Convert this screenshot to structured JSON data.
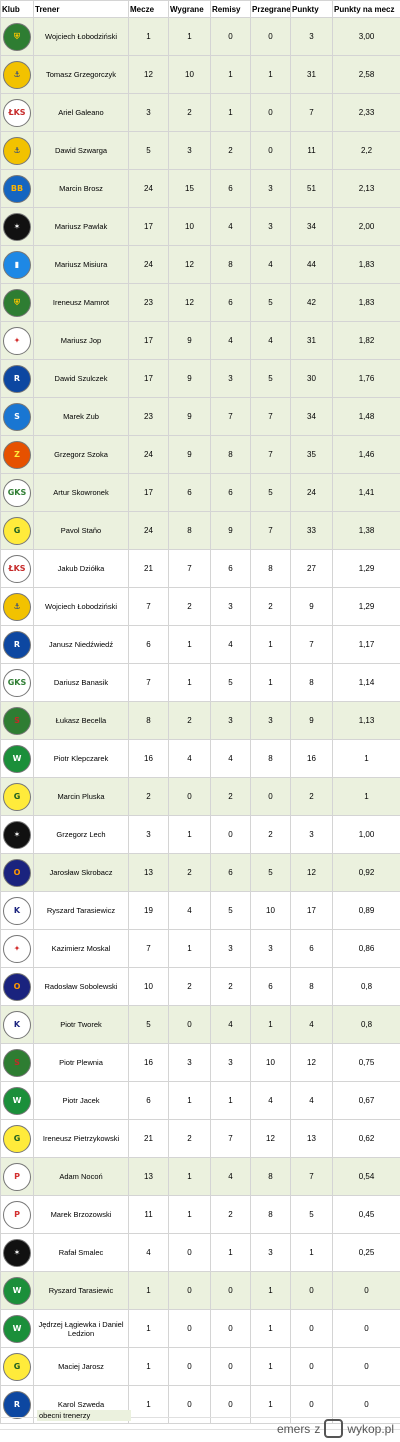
{
  "headers": {
    "club": "Klub",
    "coach": "Trener",
    "matches": "Mecze",
    "wins": "Wygrane",
    "draws": "Remisy",
    "losses": "Przegrane",
    "points": "Punkty",
    "ppm": "Punkty na mecz"
  },
  "rows": [
    {
      "crest": "crest-green-shield",
      "coach": "Wojciech Łobodziński",
      "m": "1",
      "w": "1",
      "d": "0",
      "l": "0",
      "p": "3",
      "ppm": "3,00",
      "current": true
    },
    {
      "crest": "crest-arka",
      "coach": "Tomasz Grzegorczyk",
      "m": "12",
      "w": "10",
      "d": "1",
      "l": "1",
      "p": "31",
      "ppm": "2,58",
      "current": true
    },
    {
      "crest": "crest-lks",
      "coach": "Ariel Galeano",
      "m": "3",
      "w": "2",
      "d": "1",
      "l": "0",
      "p": "7",
      "ppm": "2,33",
      "current": true
    },
    {
      "crest": "crest-arka",
      "coach": "Dawid Szwarga",
      "m": "5",
      "w": "3",
      "d": "2",
      "l": "0",
      "p": "11",
      "ppm": "2,2",
      "current": true
    },
    {
      "crest": "crest-bruk-bet",
      "coach": "Marcin Brosz",
      "m": "24",
      "w": "15",
      "d": "6",
      "l": "3",
      "p": "51",
      "ppm": "2,13",
      "current": true
    },
    {
      "crest": "crest-polonia",
      "coach": "Mariusz Pawlak",
      "m": "17",
      "w": "10",
      "d": "4",
      "l": "3",
      "p": "34",
      "ppm": "2,00",
      "current": true
    },
    {
      "crest": "crest-blue-white",
      "coach": "Mariusz Misiura",
      "m": "24",
      "w": "12",
      "d": "8",
      "l": "4",
      "p": "44",
      "ppm": "1,83",
      "current": true
    },
    {
      "crest": "crest-green-shield",
      "coach": "Ireneusz Mamrot",
      "m": "23",
      "w": "12",
      "d": "6",
      "l": "5",
      "p": "42",
      "ppm": "1,83",
      "current": true
    },
    {
      "crest": "crest-wisla",
      "coach": "Mariusz Jop",
      "m": "17",
      "w": "9",
      "d": "4",
      "l": "4",
      "p": "31",
      "ppm": "1,82",
      "current": true
    },
    {
      "crest": "crest-ruch",
      "coach": "Dawid Szulczek",
      "m": "17",
      "w": "9",
      "d": "3",
      "l": "5",
      "p": "30",
      "ppm": "1,76",
      "current": true
    },
    {
      "crest": "crest-stal-rzeszow",
      "coach": "Marek Zub",
      "m": "23",
      "w": "9",
      "d": "7",
      "l": "7",
      "p": "34",
      "ppm": "1,48",
      "current": true
    },
    {
      "crest": "crest-znicz",
      "coach": "Grzegorz Szoka",
      "m": "24",
      "w": "9",
      "d": "8",
      "l": "7",
      "p": "35",
      "ppm": "1,46",
      "current": true
    },
    {
      "crest": "crest-gks",
      "coach": "Artur Skowronek",
      "m": "17",
      "w": "6",
      "d": "6",
      "l": "5",
      "p": "24",
      "ppm": "1,41",
      "current": true
    },
    {
      "crest": "crest-gks-yellow",
      "coach": "Pavol Staňo",
      "m": "24",
      "w": "8",
      "d": "9",
      "l": "7",
      "p": "33",
      "ppm": "1,38",
      "current": true
    },
    {
      "crest": "crest-lks",
      "coach": "Jakub Dziółka",
      "m": "21",
      "w": "7",
      "d": "6",
      "l": "8",
      "p": "27",
      "ppm": "1,29",
      "current": false
    },
    {
      "crest": "crest-arka",
      "coach": "Wojciech Łobodziński",
      "m": "7",
      "w": "2",
      "d": "3",
      "l": "2",
      "p": "9",
      "ppm": "1,29",
      "current": false
    },
    {
      "crest": "crest-ruch",
      "coach": "Janusz Niedźwiedź",
      "m": "6",
      "w": "1",
      "d": "4",
      "l": "1",
      "p": "7",
      "ppm": "1,17",
      "current": false
    },
    {
      "crest": "crest-gks",
      "coach": "Dariusz Banasik",
      "m": "7",
      "w": "1",
      "d": "5",
      "l": "1",
      "p": "8",
      "ppm": "1,14",
      "current": false
    },
    {
      "crest": "crest-stomil",
      "coach": "Łukasz Becella",
      "m": "8",
      "w": "2",
      "d": "3",
      "l": "3",
      "p": "9",
      "ppm": "1,13",
      "current": true
    },
    {
      "crest": "crest-warta",
      "coach": "Piotr Klepczarek",
      "m": "16",
      "w": "4",
      "d": "4",
      "l": "8",
      "p": "16",
      "ppm": "1",
      "current": false
    },
    {
      "crest": "crest-gks-yellow",
      "coach": "Marcin Pluska",
      "m": "2",
      "w": "0",
      "d": "2",
      "l": "0",
      "p": "2",
      "ppm": "1",
      "current": true
    },
    {
      "crest": "crest-polonia",
      "coach": "Grzegorz Lech",
      "m": "3",
      "w": "1",
      "d": "0",
      "l": "2",
      "p": "3",
      "ppm": "1,00",
      "current": false
    },
    {
      "crest": "crest-odra",
      "coach": "Jarosław Skrobacz",
      "m": "13",
      "w": "2",
      "d": "6",
      "l": "5",
      "p": "12",
      "ppm": "0,92",
      "current": true
    },
    {
      "crest": "crest-kotwica",
      "coach": "Ryszard Tarasiewicz",
      "m": "19",
      "w": "4",
      "d": "5",
      "l": "10",
      "p": "17",
      "ppm": "0,89",
      "current": false
    },
    {
      "crest": "crest-wisla",
      "coach": "Kazimierz Moskal",
      "m": "7",
      "w": "1",
      "d": "3",
      "l": "3",
      "p": "6",
      "ppm": "0,86",
      "current": false
    },
    {
      "crest": "crest-odra",
      "coach": "Radosław Sobolewski",
      "m": "10",
      "w": "2",
      "d": "2",
      "l": "6",
      "p": "8",
      "ppm": "0,8",
      "current": false
    },
    {
      "crest": "crest-kotwica",
      "coach": "Piotr Tworek",
      "m": "5",
      "w": "0",
      "d": "4",
      "l": "1",
      "p": "4",
      "ppm": "0,8",
      "current": true
    },
    {
      "crest": "crest-stomil",
      "coach": "Piotr Plewnia",
      "m": "16",
      "w": "3",
      "d": "3",
      "l": "10",
      "p": "12",
      "ppm": "0,75",
      "current": false
    },
    {
      "crest": "crest-warta",
      "coach": "Piotr Jacek",
      "m": "6",
      "w": "1",
      "d": "1",
      "l": "4",
      "p": "4",
      "ppm": "0,67",
      "current": false
    },
    {
      "crest": "crest-gks-yellow",
      "coach": "Ireneusz Pietrzykowski",
      "m": "21",
      "w": "2",
      "d": "7",
      "l": "12",
      "p": "13",
      "ppm": "0,62",
      "current": false
    },
    {
      "crest": "crest-pogon",
      "coach": "Adam Nocoń",
      "m": "13",
      "w": "1",
      "d": "4",
      "l": "8",
      "p": "7",
      "ppm": "0,54",
      "current": true
    },
    {
      "crest": "crest-pogon",
      "coach": "Marek Brzozowski",
      "m": "11",
      "w": "1",
      "d": "2",
      "l": "8",
      "p": "5",
      "ppm": "0,45",
      "current": false
    },
    {
      "crest": "crest-polonia",
      "coach": "Rafał Smalec",
      "m": "4",
      "w": "0",
      "d": "1",
      "l": "3",
      "p": "1",
      "ppm": "0,25",
      "current": false
    },
    {
      "crest": "crest-warta",
      "coach": "Ryszard Tarasiewic",
      "m": "1",
      "w": "0",
      "d": "0",
      "l": "1",
      "p": "0",
      "ppm": "0",
      "current": true
    },
    {
      "crest": "crest-warta",
      "coach": "Jędrzej Łągiewka i Daniel Ledzion",
      "m": "1",
      "w": "0",
      "d": "0",
      "l": "1",
      "p": "0",
      "ppm": "0",
      "current": false
    },
    {
      "crest": "crest-gks-yellow",
      "coach": "Maciej Jarosz",
      "m": "1",
      "w": "0",
      "d": "0",
      "l": "1",
      "p": "0",
      "ppm": "0",
      "current": false
    },
    {
      "crest": "crest-ruch",
      "coach": "Karol Szweda",
      "m": "1",
      "w": "0",
      "d": "0",
      "l": "1",
      "p": "0",
      "ppm": "0",
      "current": false
    }
  ],
  "legend": "obecni trenerzy",
  "watermark": {
    "user": "emers",
    "sep": "z",
    "site": "wykop.pl"
  },
  "colors": {
    "current_row": "#ebf1de",
    "other_row": "#ffffff",
    "grid": "#d4d4d4"
  },
  "crest_styles": {
    "crest-green-shield": {
      "bg": "#2e7d32",
      "fg": "#f5c400",
      "mark": "⛨"
    },
    "crest-arka": {
      "bg": "#f2c200",
      "fg": "#1a3a8f",
      "mark": "⚓"
    },
    "crest-lks": {
      "bg": "#ffffff",
      "fg": "#c62828",
      "mark": "ŁKS"
    },
    "crest-bruk-bet": {
      "bg": "#1565c0",
      "fg": "#ffb300",
      "mark": "BB"
    },
    "crest-polonia": {
      "bg": "#111111",
      "fg": "#ffffff",
      "mark": "✶"
    },
    "crest-blue-white": {
      "bg": "#1e88e5",
      "fg": "#ffffff",
      "mark": "▮"
    },
    "crest-wisla": {
      "bg": "#ffffff",
      "fg": "#d32f2f",
      "mark": "✦"
    },
    "crest-ruch": {
      "bg": "#0d47a1",
      "fg": "#ffffff",
      "mark": "R"
    },
    "crest-stal-rzeszow": {
      "bg": "#1976d2",
      "fg": "#ffffff",
      "mark": "S"
    },
    "crest-znicz": {
      "bg": "#e65100",
      "fg": "#ffeb3b",
      "mark": "Z"
    },
    "crest-gks": {
      "bg": "#ffffff",
      "fg": "#2e7d32",
      "mark": "GKS"
    },
    "crest-gks-yellow": {
      "bg": "#ffeb3b",
      "fg": "#1b5e20",
      "mark": "G"
    },
    "crest-stomil": {
      "bg": "#2e7d32",
      "fg": "#c62828",
      "mark": "S"
    },
    "crest-warta": {
      "bg": "#1b8f3a",
      "fg": "#ffffff",
      "mark": "W"
    },
    "crest-odra": {
      "bg": "#1a237e",
      "fg": "#ff9800",
      "mark": "O"
    },
    "crest-kotwica": {
      "bg": "#ffffff",
      "fg": "#1a237e",
      "mark": "K"
    },
    "crest-pogon": {
      "bg": "#ffffff",
      "fg": "#d32f2f",
      "mark": "P"
    }
  }
}
